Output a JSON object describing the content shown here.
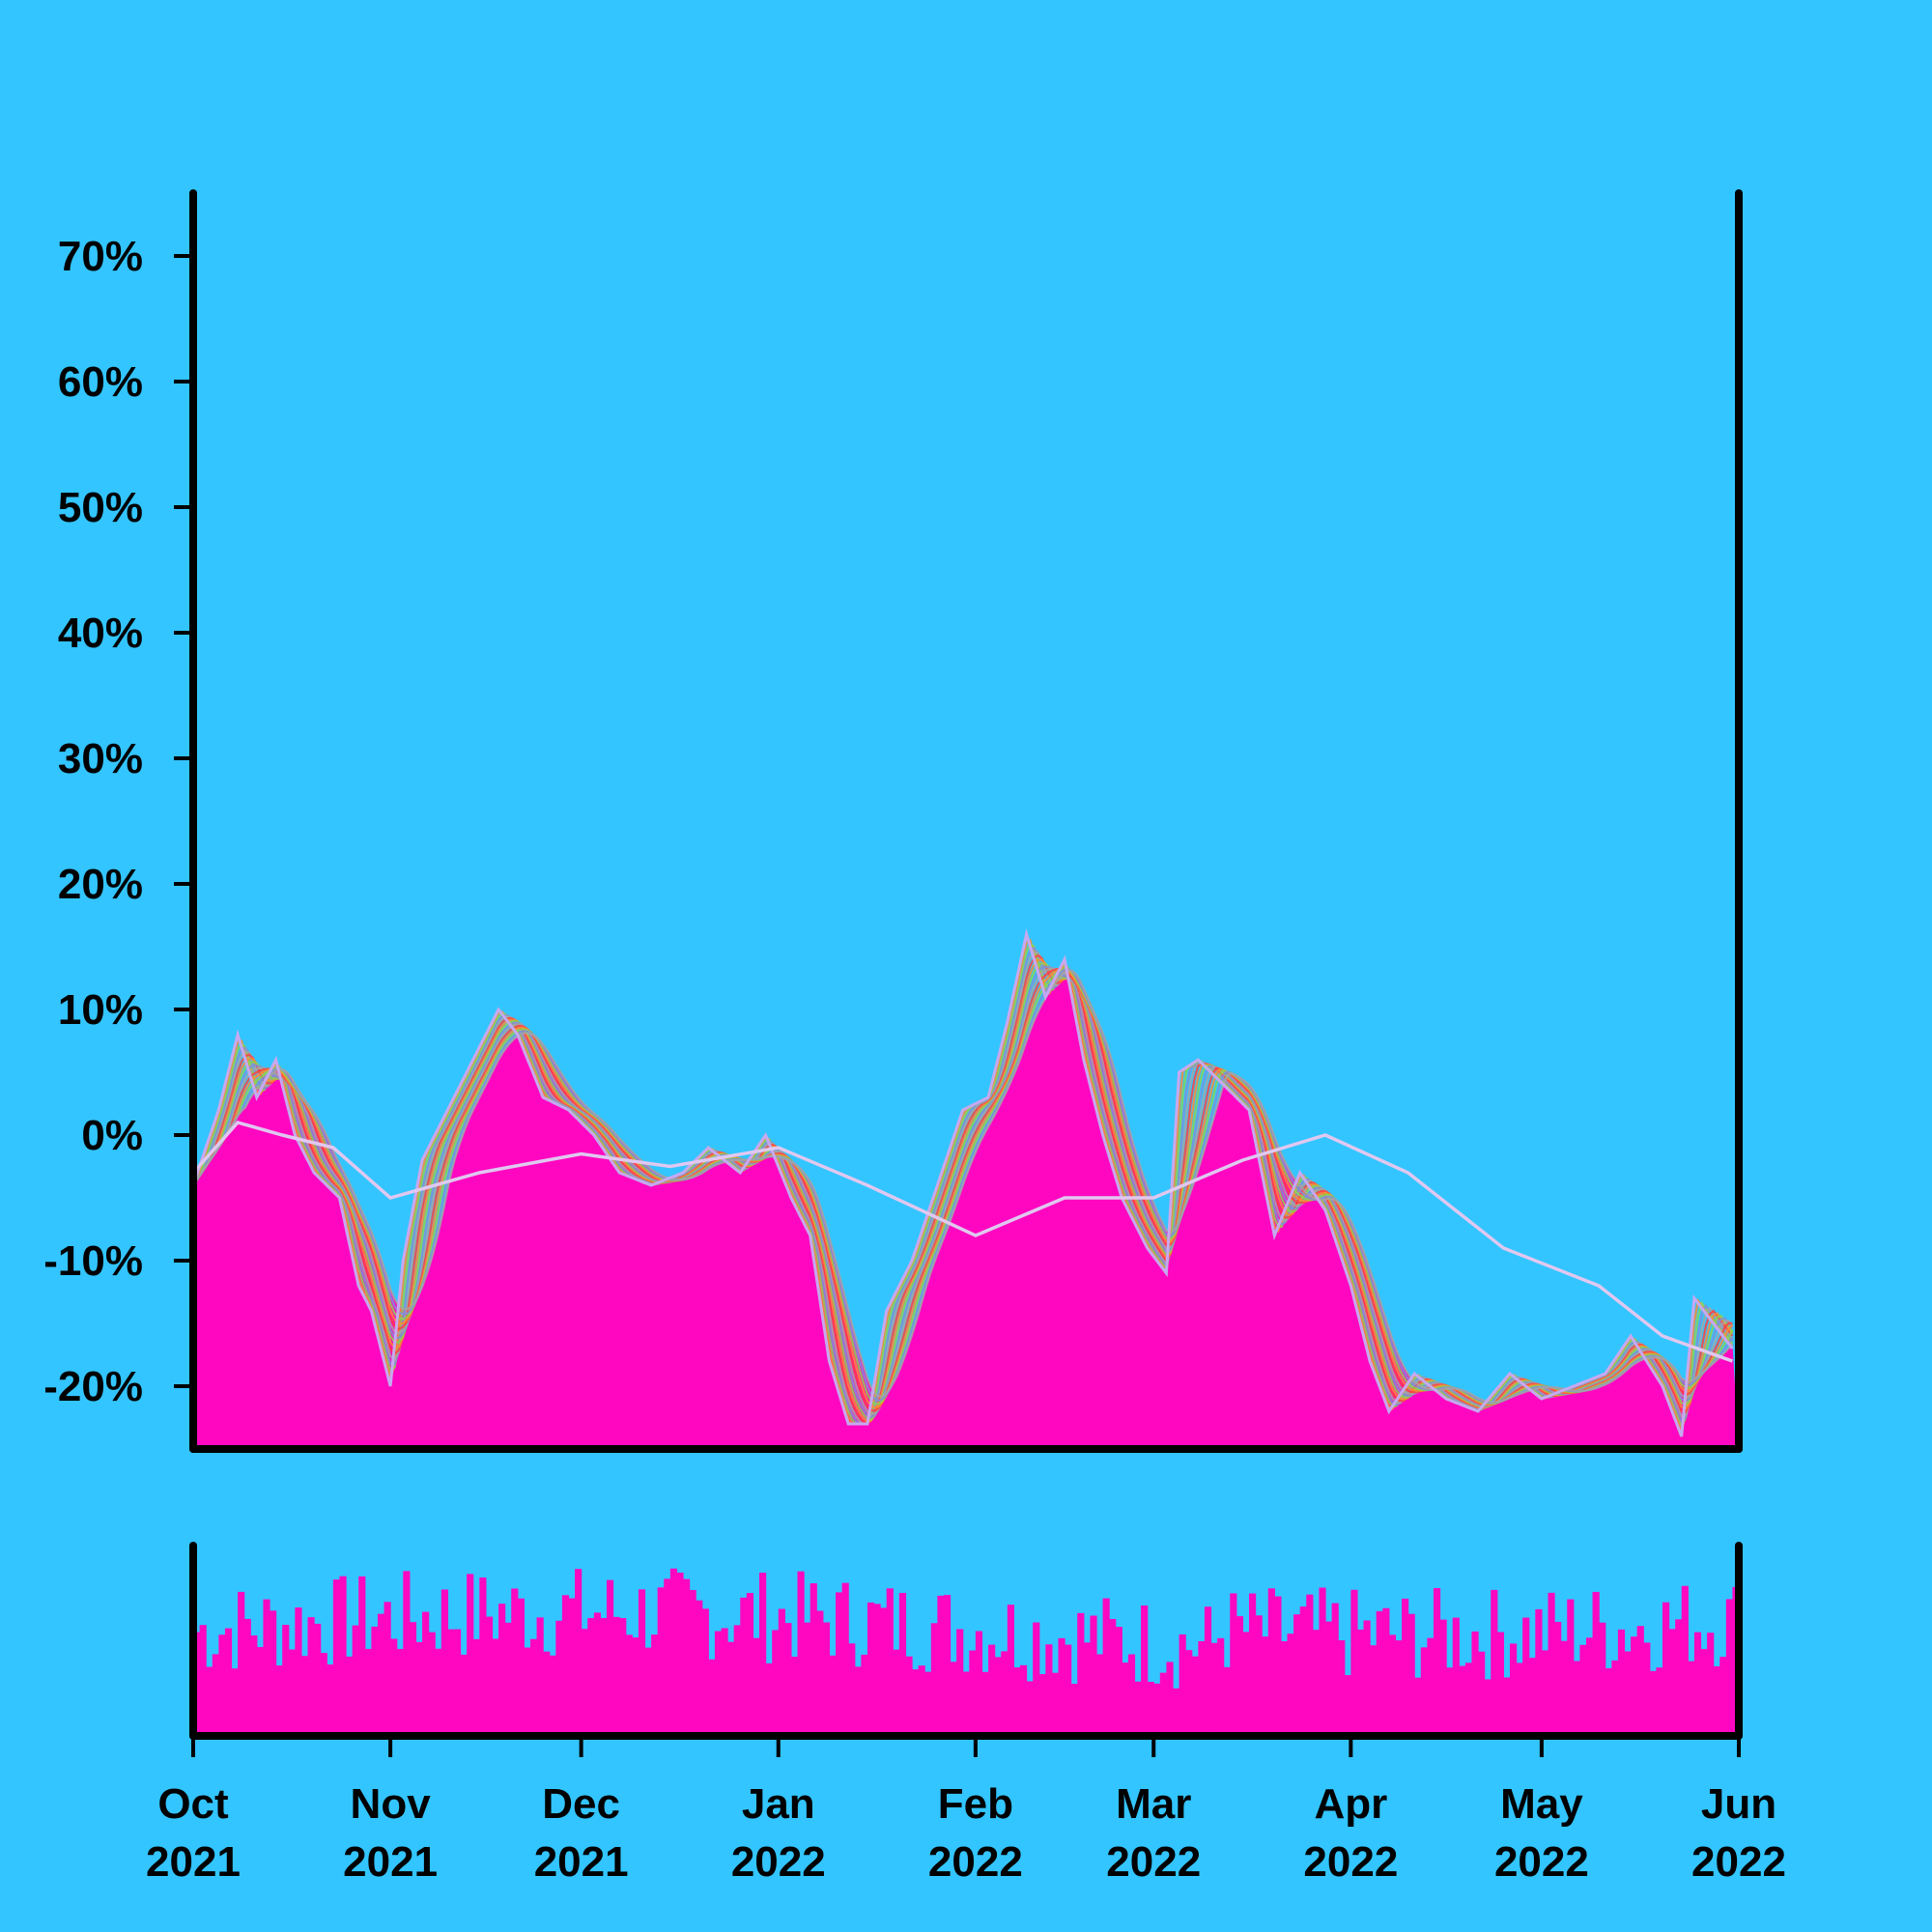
{
  "chart_data": {
    "type": "area",
    "background": "#33c5ff",
    "area_color": "#ff07c1",
    "ribbon_colors": [
      "#ff4040",
      "#ff8a33",
      "#8bd34f",
      "#7f8fd9",
      "#a4a4a4"
    ],
    "avg_line_color": "#e0c8f0",
    "price_line_color": "#c6a9f0",
    "x": {
      "range": [
        "2021-10-01",
        "2022-06-01"
      ],
      "ticks": [
        {
          "date": "2021-10-01",
          "month": "Oct",
          "year": "2021"
        },
        {
          "date": "2021-11-01",
          "month": "Nov",
          "year": "2021"
        },
        {
          "date": "2021-12-01",
          "month": "Dec",
          "year": "2021"
        },
        {
          "date": "2022-01-01",
          "month": "Jan",
          "year": "2022"
        },
        {
          "date": "2022-02-01",
          "month": "Feb",
          "year": "2022"
        },
        {
          "date": "2022-03-01",
          "month": "Mar",
          "year": "2022"
        },
        {
          "date": "2022-04-01",
          "month": "Apr",
          "year": "2022"
        },
        {
          "date": "2022-05-01",
          "month": "May",
          "year": "2022"
        },
        {
          "date": "2022-06-01",
          "month": "Jun",
          "year": "2022"
        }
      ]
    },
    "y": {
      "ylim": [
        -25,
        75
      ],
      "ticks": [
        {
          "value": -20,
          "label": "-20%"
        },
        {
          "value": -10,
          "label": "-10%"
        },
        {
          "value": 0,
          "label": "0%"
        },
        {
          "value": 10,
          "label": "10%"
        },
        {
          "value": 20,
          "label": "20%"
        },
        {
          "value": 30,
          "label": "30%"
        },
        {
          "value": 40,
          "label": "40%"
        },
        {
          "value": 50,
          "label": "50%"
        },
        {
          "value": 60,
          "label": "60%"
        },
        {
          "value": 70,
          "label": "70%"
        }
      ]
    },
    "price_series": [
      [
        "2021-10-01",
        -4
      ],
      [
        "2021-10-05",
        2
      ],
      [
        "2021-10-08",
        8
      ],
      [
        "2021-10-11",
        3
      ],
      [
        "2021-10-14",
        6
      ],
      [
        "2021-10-17",
        0
      ],
      [
        "2021-10-20",
        -3
      ],
      [
        "2021-10-24",
        -5
      ],
      [
        "2021-10-27",
        -12
      ],
      [
        "2021-10-29",
        -14
      ],
      [
        "2021-11-01",
        -20
      ],
      [
        "2021-11-03",
        -10
      ],
      [
        "2021-11-06",
        -2
      ],
      [
        "2021-11-10",
        2
      ],
      [
        "2021-11-14",
        6
      ],
      [
        "2021-11-18",
        10
      ],
      [
        "2021-11-21",
        8
      ],
      [
        "2021-11-25",
        3
      ],
      [
        "2021-11-29",
        2
      ],
      [
        "2021-12-03",
        0
      ],
      [
        "2021-12-07",
        -3
      ],
      [
        "2021-12-12",
        -4
      ],
      [
        "2021-12-17",
        -3
      ],
      [
        "2021-12-21",
        -1
      ],
      [
        "2021-12-26",
        -3
      ],
      [
        "2021-12-30",
        0
      ],
      [
        "2022-01-03",
        -5
      ],
      [
        "2022-01-06",
        -8
      ],
      [
        "2022-01-09",
        -18
      ],
      [
        "2022-01-12",
        -23
      ],
      [
        "2022-01-15",
        -23
      ],
      [
        "2022-01-18",
        -14
      ],
      [
        "2022-01-22",
        -10
      ],
      [
        "2022-01-26",
        -4
      ],
      [
        "2022-01-30",
        2
      ],
      [
        "2022-02-03",
        3
      ],
      [
        "2022-02-06",
        9
      ],
      [
        "2022-02-09",
        16
      ],
      [
        "2022-02-12",
        11
      ],
      [
        "2022-02-15",
        14
      ],
      [
        "2022-02-18",
        6
      ],
      [
        "2022-02-21",
        0
      ],
      [
        "2022-02-24",
        -5
      ],
      [
        "2022-02-28",
        -9
      ],
      [
        "2022-03-03",
        -11
      ],
      [
        "2022-03-05",
        5
      ],
      [
        "2022-03-08",
        6
      ],
      [
        "2022-03-12",
        4
      ],
      [
        "2022-03-16",
        2
      ],
      [
        "2022-03-20",
        -8
      ],
      [
        "2022-03-24",
        -3
      ],
      [
        "2022-03-28",
        -6
      ],
      [
        "2022-04-01",
        -12
      ],
      [
        "2022-04-04",
        -18
      ],
      [
        "2022-04-07",
        -22
      ],
      [
        "2022-04-11",
        -19
      ],
      [
        "2022-04-16",
        -21
      ],
      [
        "2022-04-21",
        -22
      ],
      [
        "2022-04-26",
        -19
      ],
      [
        "2022-05-01",
        -21
      ],
      [
        "2022-05-06",
        -20
      ],
      [
        "2022-05-11",
        -19
      ],
      [
        "2022-05-15",
        -16
      ],
      [
        "2022-05-20",
        -20
      ],
      [
        "2022-05-23",
        -24
      ],
      [
        "2022-05-25",
        -13
      ],
      [
        "2022-05-28",
        -15
      ],
      [
        "2022-05-31",
        -17
      ]
    ],
    "avg_series": [
      [
        "2021-10-01",
        -3
      ],
      [
        "2021-10-08",
        1
      ],
      [
        "2021-10-15",
        0
      ],
      [
        "2021-10-23",
        -1
      ],
      [
        "2021-11-01",
        -5
      ],
      [
        "2021-11-15",
        -3
      ],
      [
        "2021-12-01",
        -1.5
      ],
      [
        "2021-12-15",
        -2.5
      ],
      [
        "2022-01-01",
        -1
      ],
      [
        "2022-01-15",
        -4
      ],
      [
        "2022-02-01",
        -8
      ],
      [
        "2022-02-15",
        -5
      ],
      [
        "2022-03-01",
        -5
      ],
      [
        "2022-03-15",
        -2
      ],
      [
        "2022-03-28",
        0
      ],
      [
        "2022-04-10",
        -3
      ],
      [
        "2022-04-25",
        -9
      ],
      [
        "2022-05-10",
        -12
      ],
      [
        "2022-05-20",
        -16
      ],
      [
        "2022-05-31",
        -18
      ]
    ],
    "volume_panel": {
      "bar_count": 243,
      "level_range": [
        0.25,
        0.95
      ]
    }
  }
}
